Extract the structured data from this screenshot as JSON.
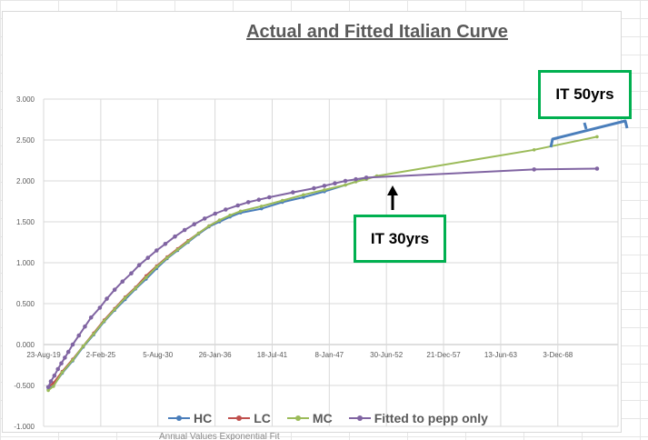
{
  "chart_data": {
    "type": "line",
    "title": "Actual and Fitted Italian Curve",
    "xlabel": "",
    "ylabel": "",
    "ylim": [
      -1.0,
      3.0
    ],
    "y_ticks": [
      "3.000",
      "2.500",
      "2.000",
      "1.500",
      "1.000",
      "0.500",
      "0.000",
      "-0.500",
      "-1.000"
    ],
    "x_ticks": [
      "23-Aug-19",
      "2-Feb-25",
      "5-Aug-30",
      "26-Jan-36",
      "18-Jul-41",
      "8-Jan-47",
      "30-Jun-52",
      "21-Dec-57",
      "13-Jun-63",
      "3-Dec-68"
    ],
    "xlim": [
      "2019-08-23",
      "2074-06-01"
    ],
    "legend_position": "bottom",
    "series": [
      {
        "name": "HC",
        "color": "#4a7ebb",
        "x": [
          "2020-02-01",
          "2020-08-01",
          "2021-06-01",
          "2022-06-01",
          "2023-06-01",
          "2024-06-01",
          "2025-06-01",
          "2026-06-01",
          "2027-06-01",
          "2028-06-01",
          "2029-06-01",
          "2030-06-01",
          "2031-06-01",
          "2032-06-01",
          "2033-06-01",
          "2034-06-01",
          "2035-06-01",
          "2036-06-01",
          "2037-06-01",
          "2038-06-01",
          "2040-06-01",
          "2042-06-01",
          "2044-06-01",
          "2046-06-01",
          "2048-06-01",
          "2050-06-01"
        ],
        "y": [
          -0.55,
          -0.5,
          -0.35,
          -0.2,
          -0.03,
          0.12,
          0.28,
          0.42,
          0.55,
          0.68,
          0.8,
          0.93,
          1.05,
          1.15,
          1.25,
          1.35,
          1.44,
          1.5,
          1.56,
          1.61,
          1.66,
          1.74,
          1.8,
          1.87,
          1.95,
          2.03
        ]
      },
      {
        "name": "LC",
        "color": "#c0504d",
        "x": [
          "2020-02-01",
          "2020-08-01",
          "2021-06-01",
          "2022-06-01",
          "2023-06-01",
          "2024-06-01",
          "2025-06-01",
          "2026-06-01",
          "2027-06-01",
          "2028-06-01",
          "2029-06-01",
          "2030-06-01",
          "2031-06-01",
          "2032-06-01",
          "2033-06-01",
          "2034-06-01",
          "2035-06-01",
          "2036-06-01"
        ],
        "y": [
          -0.52,
          -0.47,
          -0.33,
          -0.18,
          -0.02,
          0.14,
          0.3,
          0.44,
          0.58,
          0.7,
          0.84,
          0.96,
          1.07,
          1.17,
          1.27,
          1.36,
          1.45,
          1.52
        ]
      },
      {
        "name": "MC",
        "color": "#9bbb59",
        "x": [
          "2020-02-01",
          "2020-08-01",
          "2021-06-01",
          "2022-06-01",
          "2023-06-01",
          "2024-06-01",
          "2025-06-01",
          "2026-06-01",
          "2027-06-01",
          "2028-06-01",
          "2029-06-01",
          "2030-06-01",
          "2031-06-01",
          "2032-06-01",
          "2033-06-01",
          "2034-06-01",
          "2035-06-01",
          "2036-06-01",
          "2037-06-01",
          "2038-06-01",
          "2040-06-01",
          "2042-06-01",
          "2044-06-01",
          "2046-06-01",
          "2048-06-01",
          "2049-06-01",
          "2050-06-01",
          "2051-06-01",
          "2066-06-01",
          "2072-06-01"
        ],
        "y": [
          -0.56,
          -0.51,
          -0.34,
          -0.19,
          -0.02,
          0.13,
          0.29,
          0.43,
          0.57,
          0.69,
          0.82,
          0.95,
          1.06,
          1.16,
          1.26,
          1.36,
          1.45,
          1.52,
          1.58,
          1.63,
          1.69,
          1.76,
          1.83,
          1.89,
          1.95,
          1.99,
          2.02,
          2.06,
          2.38,
          2.54
        ]
      },
      {
        "name": "Fitted to pepp only",
        "color": "#8064a2",
        "x": [
          "2020-02-01",
          "2020-05-01",
          "2020-09-01",
          "2021-01-01",
          "2021-05-01",
          "2021-09-01",
          "2022-01-01",
          "2022-06-01",
          "2023-01-01",
          "2023-08-01",
          "2024-03-01",
          "2025-01-01",
          "2025-09-01",
          "2026-06-01",
          "2027-03-01",
          "2028-01-01",
          "2028-10-01",
          "2029-08-01",
          "2030-06-01",
          "2031-04-01",
          "2032-03-01",
          "2033-02-01",
          "2034-01-01",
          "2035-01-01",
          "2036-01-01",
          "2037-01-01",
          "2038-03-01",
          "2039-03-01",
          "2040-03-01",
          "2041-03-01",
          "2043-06-01",
          "2045-06-01",
          "2046-06-01",
          "2047-06-01",
          "2048-06-01",
          "2049-06-01",
          "2050-06-01",
          "2066-06-01",
          "2072-06-01"
        ],
        "y": [
          -0.52,
          -0.45,
          -0.38,
          -0.3,
          -0.23,
          -0.16,
          -0.09,
          0.0,
          0.11,
          0.22,
          0.33,
          0.45,
          0.56,
          0.67,
          0.77,
          0.87,
          0.97,
          1.06,
          1.15,
          1.23,
          1.32,
          1.4,
          1.47,
          1.54,
          1.6,
          1.65,
          1.7,
          1.74,
          1.77,
          1.8,
          1.86,
          1.91,
          1.94,
          1.97,
          2.0,
          2.02,
          2.04,
          2.14,
          2.15
        ]
      }
    ]
  },
  "callouts": {
    "it30": "IT 30yrs",
    "it50": "IT 50yrs"
  },
  "below_chart_text": "Annual Values Exponential Fit"
}
